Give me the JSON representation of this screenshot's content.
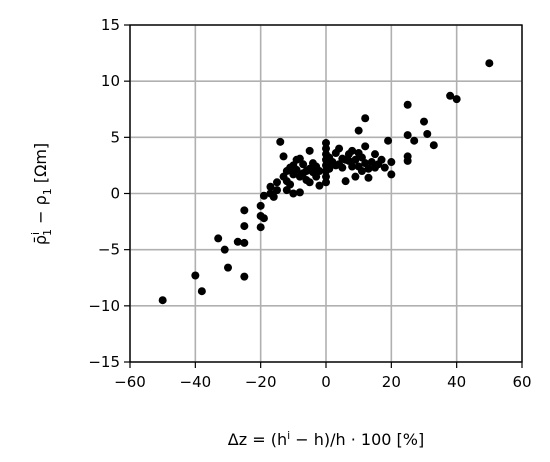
{
  "chart_data": {
    "type": "scatter",
    "xlabel": "Δz = (h^i − h)/h · 100 [%]",
    "ylabel": "ρ̄_1^i − ρ_1 [Ωm]",
    "xlim": [
      -60,
      60
    ],
    "ylim": [
      -15,
      15
    ],
    "xticks": [
      -60,
      -40,
      -20,
      0,
      20,
      40,
      60
    ],
    "yticks": [
      -15,
      -10,
      -5,
      0,
      5,
      10,
      15
    ],
    "xtick_labels": [
      "−60",
      "−40",
      "−20",
      "0",
      "20",
      "40",
      "60"
    ],
    "ytick_labels": [
      "−15",
      "−10",
      "−5",
      "0",
      "5",
      "10",
      "15"
    ],
    "grid": true,
    "marker_color": "#000000",
    "grid_color": "#b0b0b0",
    "points": [
      [
        -50,
        -9.5
      ],
      [
        -40,
        -7.3
      ],
      [
        -38,
        -8.7
      ],
      [
        -33,
        -4.0
      ],
      [
        -31,
        -5.0
      ],
      [
        -30,
        -6.6
      ],
      [
        -27,
        -4.3
      ],
      [
        -25,
        -4.4
      ],
      [
        -25,
        -7.4
      ],
      [
        -25,
        -1.5
      ],
      [
        -25,
        -2.9
      ],
      [
        -20,
        -3.0
      ],
      [
        -20,
        -2.0
      ],
      [
        -20,
        -1.1
      ],
      [
        -19,
        -2.2
      ],
      [
        -19,
        -0.2
      ],
      [
        -17,
        0.0
      ],
      [
        -17,
        0.6
      ],
      [
        -16,
        -0.3
      ],
      [
        -15,
        0.3
      ],
      [
        -15,
        1.0
      ],
      [
        -14,
        4.6
      ],
      [
        -13,
        3.3
      ],
      [
        -13,
        1.5
      ],
      [
        -12,
        2.0
      ],
      [
        -12,
        0.3
      ],
      [
        -12,
        1.1
      ],
      [
        -11,
        2.3
      ],
      [
        -11,
        0.8
      ],
      [
        -10,
        2.5
      ],
      [
        -10,
        0.0
      ],
      [
        -10,
        1.7
      ],
      [
        -9,
        3.0
      ],
      [
        -9,
        2.1
      ],
      [
        -8,
        1.5
      ],
      [
        -8,
        0.1
      ],
      [
        -8,
        3.1
      ],
      [
        -7,
        1.8
      ],
      [
        -7,
        2.6
      ],
      [
        -6,
        1.2
      ],
      [
        -6,
        2.0
      ],
      [
        -5,
        3.8
      ],
      [
        -5,
        2.2
      ],
      [
        -5,
        1.0
      ],
      [
        -4,
        2.7
      ],
      [
        -4,
        1.9
      ],
      [
        -3,
        2.4
      ],
      [
        -3,
        1.5
      ],
      [
        -2,
        2.0
      ],
      [
        -2,
        0.7
      ],
      [
        0,
        4.5
      ],
      [
        0,
        4.0
      ],
      [
        0,
        3.5
      ],
      [
        0,
        3.0
      ],
      [
        0,
        2.5
      ],
      [
        0,
        2.0
      ],
      [
        0,
        1.5
      ],
      [
        0,
        1.0
      ],
      [
        1,
        3.2
      ],
      [
        1,
        2.2
      ],
      [
        2,
        2.8
      ],
      [
        3,
        3.6
      ],
      [
        3,
        2.5
      ],
      [
        4,
        4.0
      ],
      [
        4,
        2.6
      ],
      [
        5,
        3.1
      ],
      [
        5,
        2.3
      ],
      [
        6,
        3.0
      ],
      [
        6,
        1.1
      ],
      [
        7,
        2.9
      ],
      [
        7,
        3.5
      ],
      [
        8,
        3.8
      ],
      [
        8,
        2.4
      ],
      [
        9,
        3.0
      ],
      [
        9,
        1.5
      ],
      [
        10,
        5.6
      ],
      [
        10,
        3.6
      ],
      [
        10,
        2.4
      ],
      [
        11,
        3.2
      ],
      [
        11,
        2.0
      ],
      [
        12,
        6.7
      ],
      [
        12,
        4.2
      ],
      [
        12,
        2.7
      ],
      [
        13,
        2.2
      ],
      [
        13,
        1.4
      ],
      [
        14,
        2.8
      ],
      [
        15,
        3.5
      ],
      [
        15,
        2.3
      ],
      [
        16,
        2.6
      ],
      [
        17,
        3.0
      ],
      [
        18,
        2.3
      ],
      [
        19,
        4.7
      ],
      [
        20,
        2.8
      ],
      [
        20,
        1.7
      ],
      [
        25,
        7.9
      ],
      [
        25,
        5.2
      ],
      [
        25,
        3.3
      ],
      [
        25,
        2.9
      ],
      [
        27,
        4.7
      ],
      [
        30,
        6.4
      ],
      [
        31,
        5.3
      ],
      [
        33,
        4.3
      ],
      [
        38,
        8.7
      ],
      [
        40,
        8.4
      ],
      [
        50,
        11.6
      ]
    ]
  }
}
